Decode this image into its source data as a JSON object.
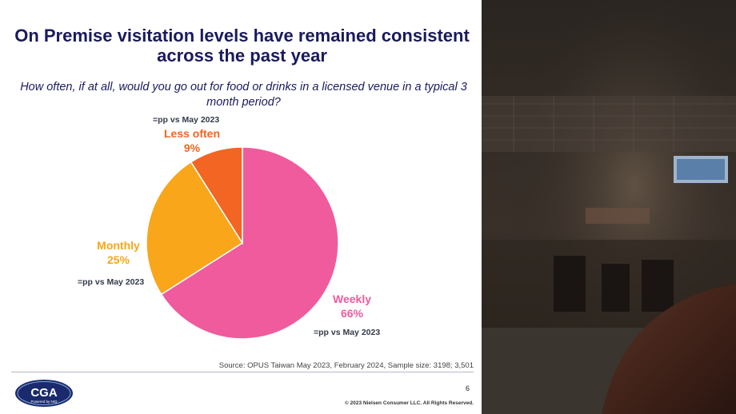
{
  "title": "On Premise visitation levels have remained consistent across the past year",
  "subtitle": "How often, if at all, would you go out for food or drinks in a licensed venue in a typical 3 month period?",
  "chart_data": {
    "type": "pie",
    "categories": [
      "Weekly",
      "Monthly",
      "Less often"
    ],
    "values": [
      66,
      25,
      9
    ],
    "value_labels": [
      "66%",
      "25%",
      "9%"
    ],
    "notes": [
      "=pp vs May 2023",
      "=pp vs May 2023",
      "=pp vs May 2023"
    ],
    "colors": [
      "#ef5b9c",
      "#f9a61a",
      "#f26522"
    ]
  },
  "source": "Source: OPUS Taiwan May 2023, February 2024, Sample size: 3198; 3,501",
  "page_number": "6",
  "copyright": "© 2023 Nielsen Consumer LLC. All Rights Reserved.",
  "logo": {
    "text": "CGA",
    "tagline": "Powered by NIQ",
    "color": "#1a2a6c"
  }
}
